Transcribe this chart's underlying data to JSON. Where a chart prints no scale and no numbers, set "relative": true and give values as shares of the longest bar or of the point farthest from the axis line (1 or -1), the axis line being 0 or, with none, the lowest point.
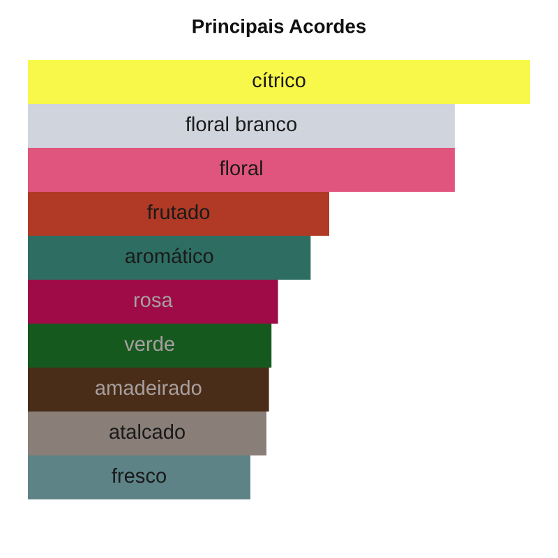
{
  "chart_data": {
    "type": "bar",
    "title": "Principais Acordes",
    "orientation": "horizontal",
    "relative": true,
    "categories": [
      "cítrico",
      "floral branco",
      "floral",
      "frutado",
      "aromático",
      "rosa",
      "verde",
      "amadeirado",
      "atalcado",
      "fresco"
    ],
    "values": [
      1,
      0.85,
      0.85,
      0.6,
      0.563,
      0.498,
      0.485,
      0.48,
      0.475,
      0.443
    ],
    "colors": [
      "#f8f84a",
      "#d0d4dc",
      "#e0557d",
      "#b03a25",
      "#2e6e62",
      "#9e0b47",
      "#16591f",
      "#4a2d18",
      "#8a7f78",
      "#5d8387"
    ]
  }
}
